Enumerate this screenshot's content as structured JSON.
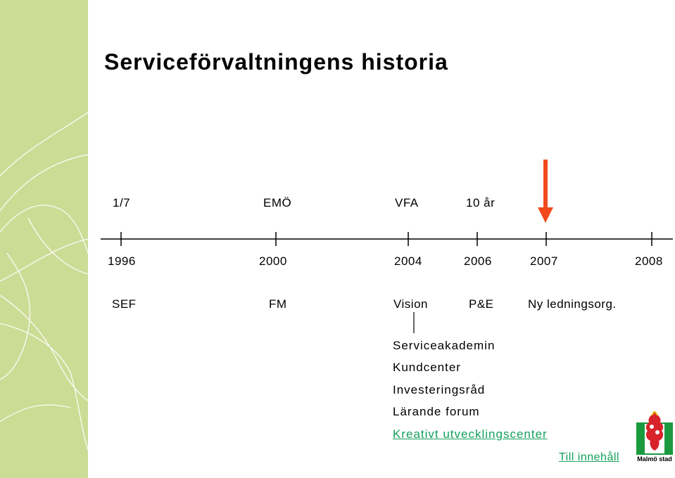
{
  "slide": {
    "title": "Serviceförvaltningens historia"
  },
  "timeline": {
    "events": [
      "1/7",
      "EMÖ",
      "VFA",
      "10 år"
    ],
    "years": [
      "1996",
      "2000",
      "2004",
      "2006",
      "2007",
      "2008"
    ],
    "orgs": [
      "SEF",
      "FM",
      "Vision",
      "P&E",
      "Ny ledningsorg."
    ],
    "arrow_color": "#f04a1c"
  },
  "items": [
    "Serviceakademin",
    "Kundcenter",
    "Investeringsråd",
    "Lärande forum"
  ],
  "links": {
    "kreativt": "Kreativt utvecklingscenter",
    "till_innehall": "Till innehåll"
  },
  "logo": {
    "text": "Malmö stad",
    "icon": "malmo-coat-of-arms-icon"
  },
  "colors": {
    "side_band": "#cbdc95",
    "link_green": "#14a05a",
    "logo_green": "#1a9a3e"
  }
}
